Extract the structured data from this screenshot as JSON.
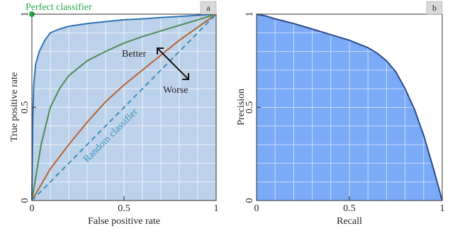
{
  "chart_data": [
    {
      "type": "line",
      "panel_label": "a",
      "title": "",
      "xlabel": "False positive rate",
      "ylabel": "True positive rate",
      "xlim": [
        0,
        1
      ],
      "ylim": [
        0,
        1
      ],
      "x_ticks": [
        "0",
        "0.5",
        "1"
      ],
      "y_ticks": [
        "0",
        "0.5",
        "1"
      ],
      "grid": true,
      "colors": {
        "fill": "#bcd2ea",
        "grid": "#ffffff",
        "perfect_marker": "#22a84a",
        "random_label": "#3b8fb8"
      },
      "annotations": {
        "perfect": "Perfect classifier",
        "random": "Random classifier",
        "better": "Better",
        "worse": "Worse"
      },
      "series": [
        {
          "color": "#2d73b4",
          "x": [
            0,
            0.005,
            0.01,
            0.02,
            0.04,
            0.07,
            0.1,
            0.15,
            0.2,
            0.3,
            0.4,
            0.5,
            0.6,
            0.7,
            0.8,
            0.9,
            1.0
          ],
          "y": [
            0,
            0.45,
            0.62,
            0.73,
            0.8,
            0.86,
            0.9,
            0.92,
            0.935,
            0.95,
            0.96,
            0.97,
            0.975,
            0.982,
            0.988,
            0.994,
            1.0
          ]
        },
        {
          "color": "#4e8a58",
          "x": [
            0,
            0.05,
            0.1,
            0.15,
            0.2,
            0.3,
            0.4,
            0.5,
            0.6,
            0.7,
            0.8,
            0.9,
            1.0
          ],
          "y": [
            0,
            0.3,
            0.5,
            0.6,
            0.67,
            0.75,
            0.8,
            0.845,
            0.88,
            0.91,
            0.94,
            0.97,
            1.0
          ]
        },
        {
          "color": "#b5632f",
          "x": [
            0,
            0.1,
            0.2,
            0.3,
            0.4,
            0.5,
            0.6,
            0.7,
            0.8,
            0.9,
            1.0
          ],
          "y": [
            0,
            0.17,
            0.3,
            0.42,
            0.53,
            0.62,
            0.7,
            0.78,
            0.86,
            0.93,
            1.0
          ]
        },
        {
          "color": "#3b8fb8",
          "dashed": true,
          "x": [
            0,
            1
          ],
          "y": [
            0,
            1
          ]
        }
      ],
      "perfect_point": {
        "x": 0,
        "y": 1
      }
    },
    {
      "type": "area",
      "panel_label": "b",
      "title": "",
      "xlabel": "Recall",
      "ylabel": "Precision",
      "xlim": [
        0,
        1
      ],
      "ylim": [
        0,
        1
      ],
      "x_ticks": [
        "0",
        "0.5",
        "1"
      ],
      "y_ticks": [
        "0",
        "0.5",
        "1"
      ],
      "grid": true,
      "colors": {
        "fill": "#7baaf7",
        "line": "#2b4a8c",
        "grid": "#ffffff"
      },
      "series": [
        {
          "x": [
            0,
            0.05,
            0.1,
            0.2,
            0.3,
            0.4,
            0.5,
            0.55,
            0.6,
            0.65,
            0.7,
            0.75,
            0.8,
            0.85,
            0.9,
            0.95,
            1.0
          ],
          "y": [
            1.0,
            0.99,
            0.975,
            0.95,
            0.92,
            0.89,
            0.86,
            0.84,
            0.82,
            0.79,
            0.75,
            0.69,
            0.6,
            0.49,
            0.35,
            0.18,
            0
          ]
        }
      ]
    }
  ]
}
